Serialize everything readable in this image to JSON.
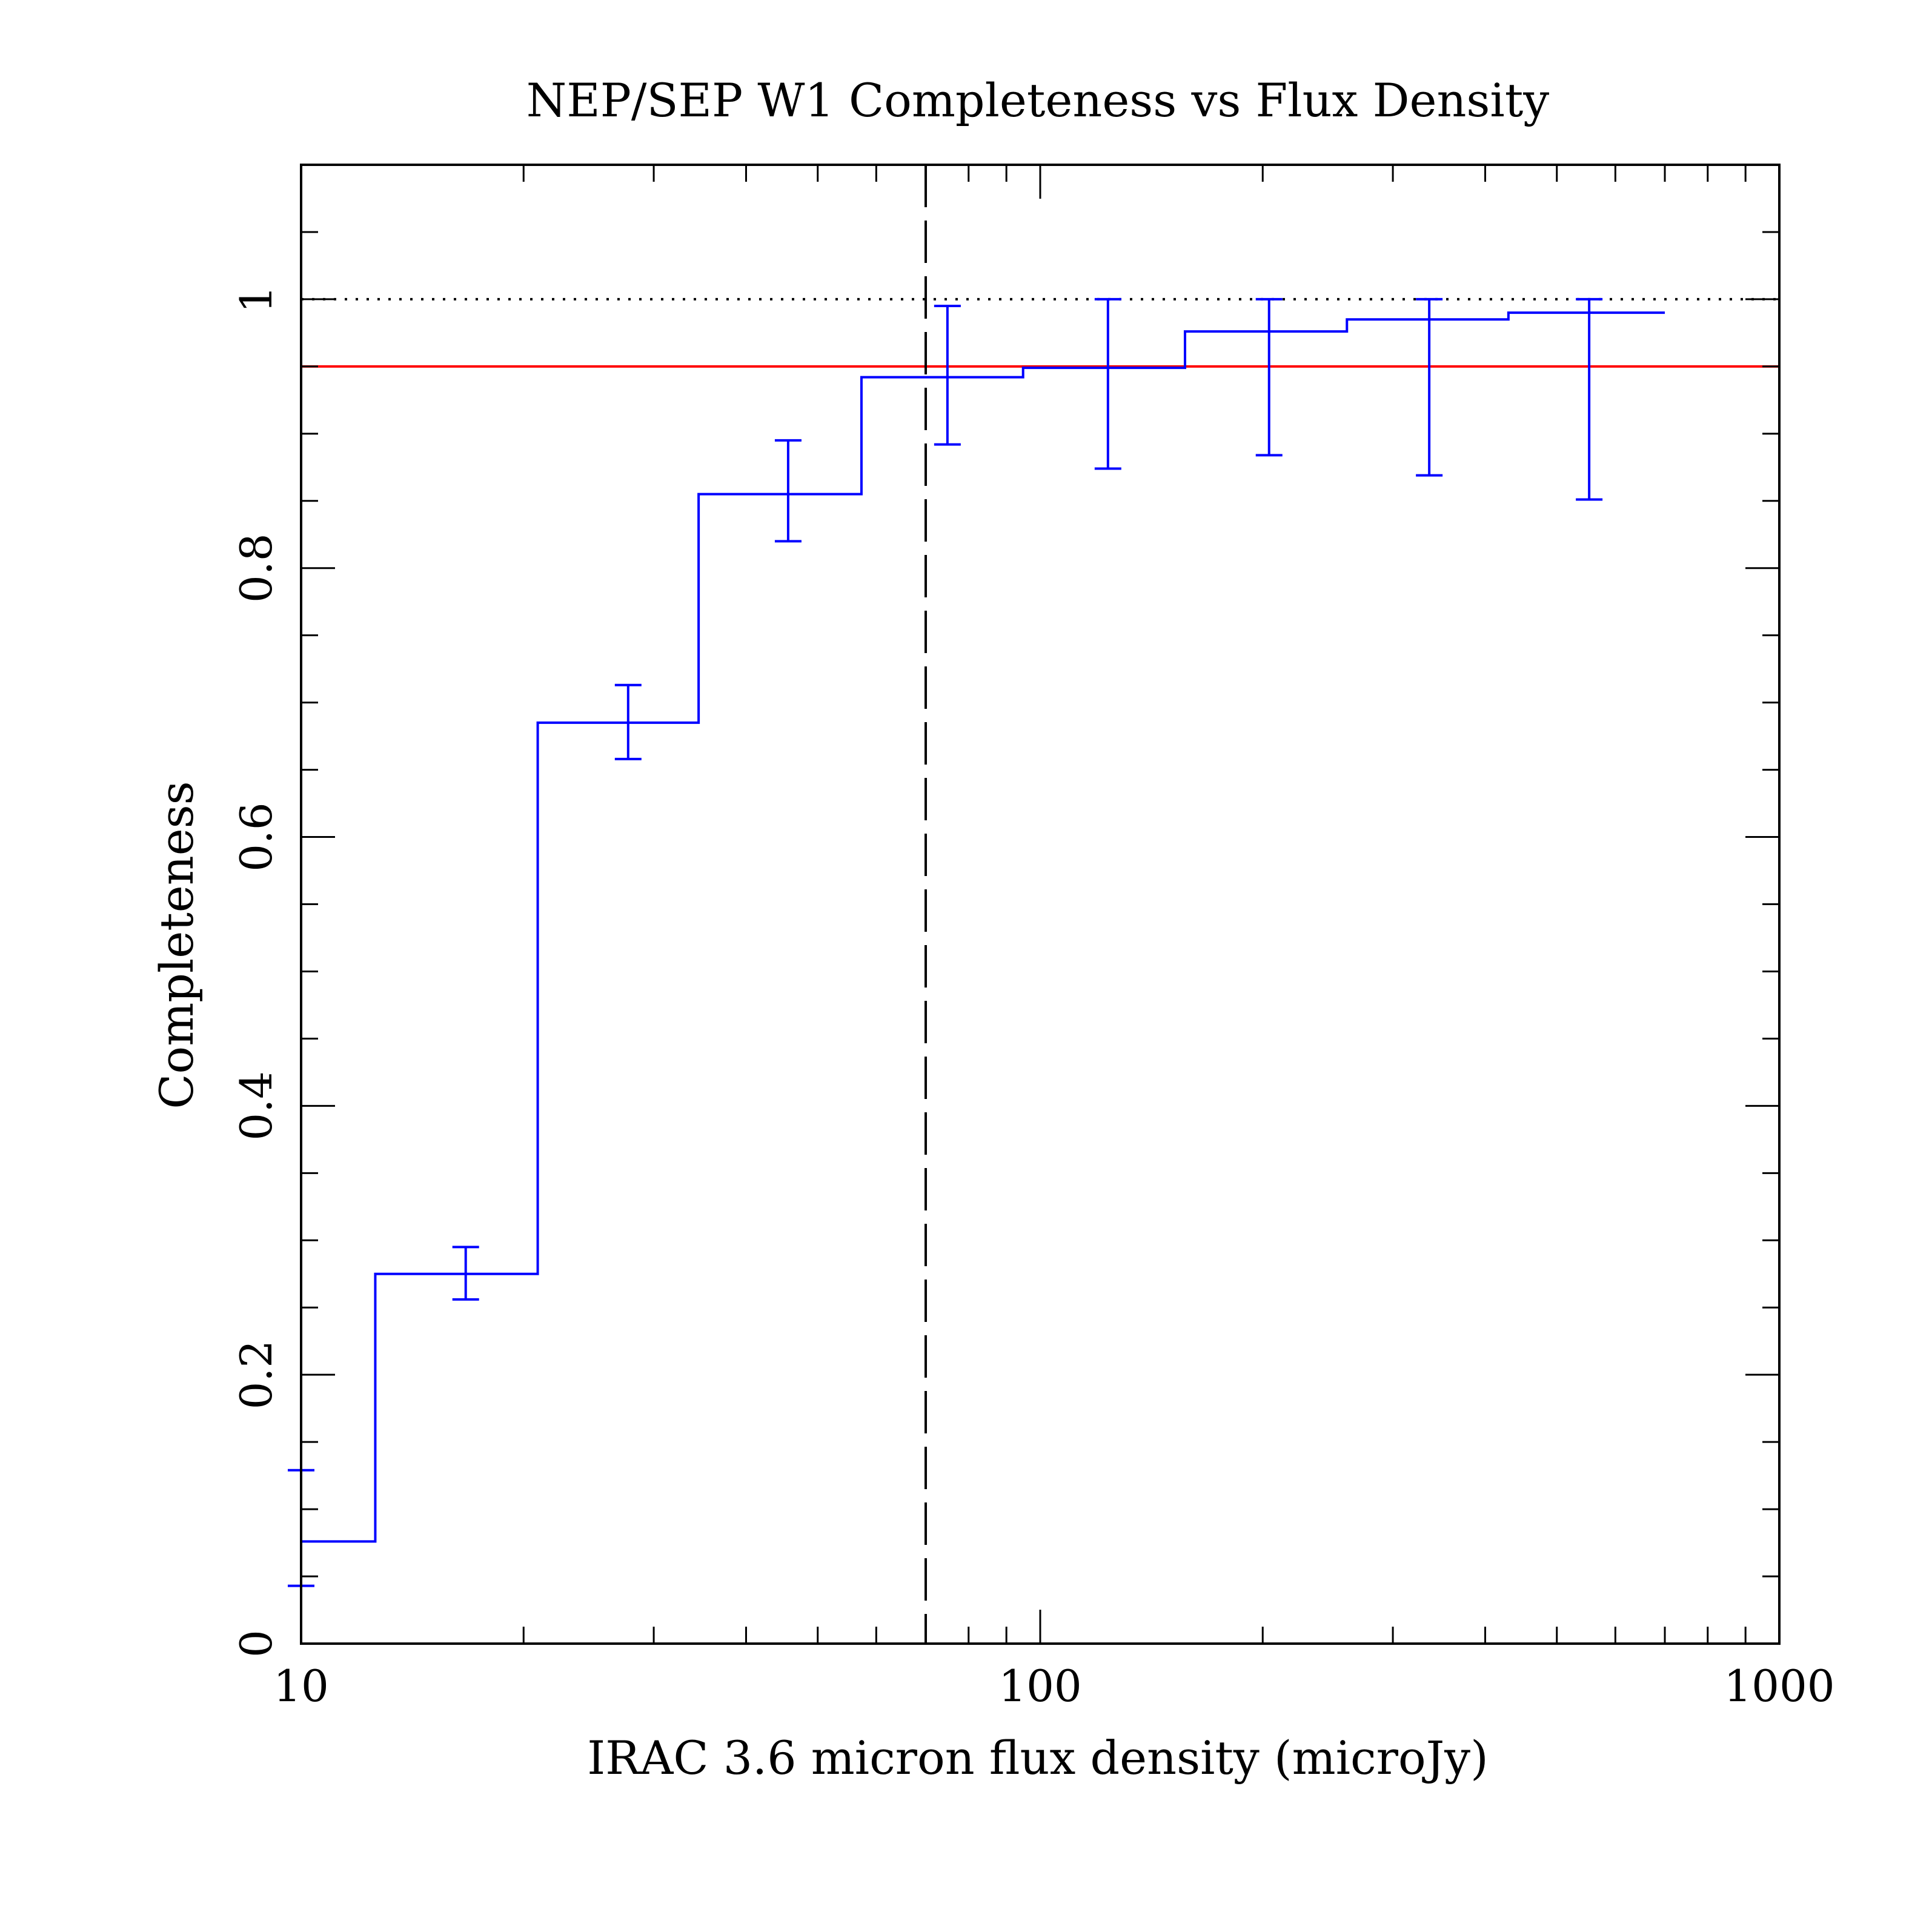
{
  "chart_data": {
    "type": "line",
    "title": "NEP/SEP W1 Completeness vs Flux Density",
    "xlabel": "IRAC 3.6 micron flux density (microJy)",
    "ylabel": "Completeness",
    "xscale": "log",
    "xlim": [
      10,
      1000
    ],
    "ylim": [
      0,
      1.1
    ],
    "grid": false,
    "legend": "none",
    "x_ticks": [
      10,
      100,
      1000
    ],
    "x_tick_labels": [
      "10",
      "100",
      "1000"
    ],
    "y_ticks": [
      0,
      0.2,
      0.4,
      0.6,
      0.8,
      1
    ],
    "y_tick_labels": [
      "0",
      "0.2",
      "0.4",
      "0.6",
      "0.8",
      "1"
    ],
    "series": [
      {
        "style": "step",
        "color": "#0000ff",
        "bins": [
          {
            "x_low": 10,
            "x_high": 12.6,
            "y": 0.076,
            "x_center": 10,
            "err_low": 0.043,
            "err_high": 0.129
          },
          {
            "x_low": 12.6,
            "x_high": 20.9,
            "y": 0.275,
            "x_center": 16.7,
            "err_low": 0.256,
            "err_high": 0.295
          },
          {
            "x_low": 20.9,
            "x_high": 34.5,
            "y": 0.685,
            "x_center": 27.7,
            "err_low": 0.658,
            "err_high": 0.713
          },
          {
            "x_low": 34.5,
            "x_high": 57.3,
            "y": 0.855,
            "x_center": 45.6,
            "err_low": 0.82,
            "err_high": 0.895
          },
          {
            "x_low": 57.3,
            "x_high": 94.8,
            "y": 0.942,
            "x_center": 74.9,
            "err_low": 0.892,
            "err_high": 0.995
          },
          {
            "x_low": 94.8,
            "x_high": 157,
            "y": 0.949,
            "x_center": 123.5,
            "err_low": 0.874,
            "err_high": 1.0
          },
          {
            "x_low": 157,
            "x_high": 260,
            "y": 0.976,
            "x_center": 204,
            "err_low": 0.884,
            "err_high": 1.0
          },
          {
            "x_low": 260,
            "x_high": 430,
            "y": 0.985,
            "x_center": 336,
            "err_low": 0.869,
            "err_high": 1.0
          },
          {
            "x_low": 430,
            "x_high": 700,
            "y": 0.99,
            "x_center": 553,
            "err_low": 0.851,
            "err_high": 1.0
          }
        ]
      }
    ],
    "reference_lines": [
      {
        "orientation": "horizontal",
        "value": 1.0,
        "style": "dotted",
        "color": "#000000"
      },
      {
        "orientation": "horizontal",
        "value": 0.95,
        "style": "solid",
        "color": "#ff0000"
      },
      {
        "orientation": "vertical",
        "value": 70,
        "style": "dashed",
        "color": "#000000"
      }
    ]
  }
}
